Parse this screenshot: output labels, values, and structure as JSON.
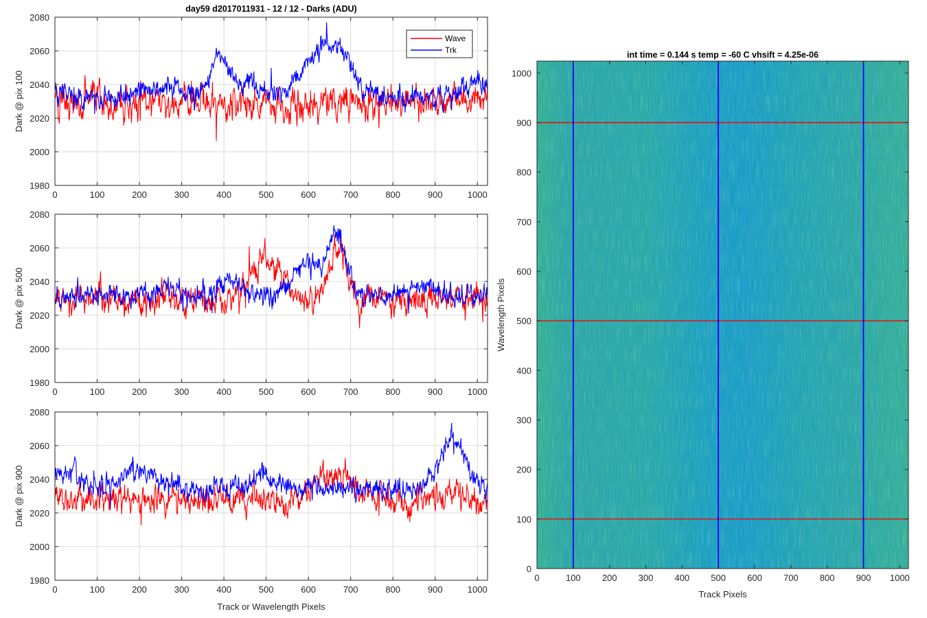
{
  "figure_title": "day59 d2017011931 - 12 / 12 - Darks (ADU)",
  "chart_data": [
    {
      "type": "line",
      "ylabel": "Dark @ pix 100",
      "xlabel": "",
      "xlim": [
        0,
        1024
      ],
      "ylim": [
        1980,
        2080
      ],
      "xticks": [
        0,
        100,
        200,
        300,
        400,
        500,
        600,
        700,
        800,
        900,
        1000
      ],
      "yticks": [
        1980,
        2000,
        2020,
        2040,
        2060,
        2080
      ],
      "grid": true,
      "legend": "top-right",
      "series": [
        {
          "name": "Wave",
          "color": "#ff0000",
          "mean": 2029,
          "noise": 9,
          "features": [
            [
              100,
              0.04,
              40
            ],
            [
              950,
              0.03,
              32
            ]
          ]
        },
        {
          "name": "Trk",
          "color": "#0000ff",
          "mean": 2032,
          "noise": 6,
          "features": [
            [
              20,
              0.05,
              30
            ],
            [
              250,
              0.07,
              60
            ],
            [
              390,
              0.25,
              30
            ],
            [
              450,
              0.09,
              40
            ],
            [
              590,
              0.08,
              30
            ],
            [
              640,
              0.25,
              60
            ],
            [
              680,
              0.12,
              40
            ],
            [
              1000,
              0.09,
              40
            ]
          ]
        }
      ]
    },
    {
      "type": "line",
      "ylabel": "Dark @ pix 500",
      "xlabel": "",
      "xlim": [
        0,
        1024
      ],
      "ylim": [
        1980,
        2080
      ],
      "xticks": [
        0,
        100,
        200,
        300,
        400,
        500,
        600,
        700,
        800,
        900,
        1000
      ],
      "yticks": [
        1980,
        2000,
        2020,
        2040,
        2060,
        2080
      ],
      "grid": true,
      "series": [
        {
          "name": "Wave",
          "color": "#ff0000",
          "mean": 2029,
          "noise": 8,
          "features": [
            [
              100,
              0.04,
              30
            ],
            [
              500,
              0.25,
              50
            ],
            [
              670,
              0.3,
              30
            ],
            [
              950,
              0.03,
              30
            ]
          ]
        },
        {
          "name": "Trk",
          "color": "#0000ff",
          "mean": 2031,
          "noise": 6,
          "features": [
            [
              260,
              0.06,
              40
            ],
            [
              410,
              0.09,
              40
            ],
            [
              600,
              0.2,
              50
            ],
            [
              670,
              0.36,
              30
            ],
            [
              870,
              0.06,
              60
            ]
          ]
        }
      ]
    },
    {
      "type": "line",
      "ylabel": "Dark @ pix 900",
      "xlabel": "Track or Wavelength Pixels",
      "xlim": [
        0,
        1024
      ],
      "ylim": [
        1980,
        2080
      ],
      "xticks": [
        0,
        100,
        200,
        300,
        400,
        500,
        600,
        700,
        800,
        900,
        1000
      ],
      "yticks": [
        1980,
        2000,
        2020,
        2040,
        2060,
        2080
      ],
      "grid": true,
      "series": [
        {
          "name": "Wave",
          "color": "#ff0000",
          "mean": 2028,
          "noise": 8,
          "features": [
            [
              660,
              0.15,
              60
            ],
            [
              950,
              0.05,
              30
            ]
          ]
        },
        {
          "name": "Trk",
          "color": "#0000ff",
          "mean": 2034,
          "noise": 6,
          "features": [
            [
              30,
              0.1,
              40
            ],
            [
              200,
              0.12,
              60
            ],
            [
              490,
              0.1,
              30
            ],
            [
              940,
              0.3,
              40
            ]
          ]
        }
      ]
    },
    {
      "type": "heatmap",
      "title": "int time = 0.144 s   temp = -60 C   vhsift = 4.25e-06",
      "xlabel": "Track Pixels",
      "ylabel": "Wavelength Pixels",
      "xlim": [
        0,
        1024
      ],
      "ylim": [
        0,
        1024
      ],
      "xticks": [
        0,
        100,
        200,
        300,
        400,
        500,
        600,
        700,
        800,
        900,
        1000
      ],
      "yticks": [
        0,
        100,
        200,
        300,
        400,
        500,
        600,
        700,
        800,
        900,
        1000
      ],
      "colormap": "parula",
      "vertical_lines": {
        "positions": [
          100,
          500,
          900
        ],
        "color": "#0000ff"
      },
      "horizontal_lines": {
        "positions": [
          100,
          500,
          900
        ],
        "color": "#ff0000"
      }
    }
  ]
}
